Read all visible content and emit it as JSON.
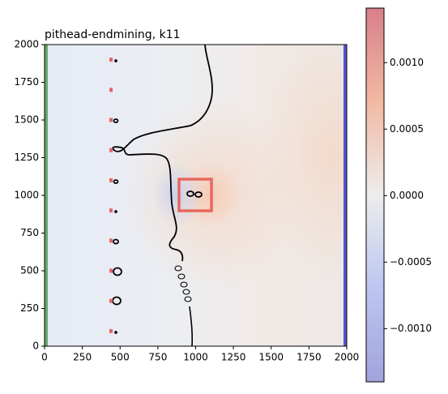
{
  "chart_data": {
    "type": "heatmap",
    "title": "pithead-endmining, k11",
    "xlim": [
      0,
      2000
    ],
    "ylim": [
      0,
      2000
    ],
    "xticks": [
      0,
      250,
      500,
      750,
      1000,
      1250,
      1500,
      1750,
      2000
    ],
    "yticks": [
      0,
      250,
      500,
      750,
      1000,
      1250,
      1500,
      1750,
      2000
    ],
    "clim": [
      -0.0014,
      0.00141
    ],
    "cticks": [
      {
        "value": -0.001,
        "label": "−0.0010"
      },
      {
        "value": -0.0005,
        "label": "−0.0005"
      },
      {
        "value": 0,
        "label": "0.0000"
      },
      {
        "value": 0.0005,
        "label": "0.0005"
      },
      {
        "value": 0.001,
        "label": "0.0010"
      }
    ],
    "markers": {
      "color": "#e06666",
      "x": [
        440,
        440,
        440,
        440,
        440,
        440,
        440,
        440,
        440,
        440
      ],
      "y": [
        100,
        300,
        500,
        700,
        900,
        1100,
        1300,
        1500,
        1700,
        1900
      ]
    }
  }
}
